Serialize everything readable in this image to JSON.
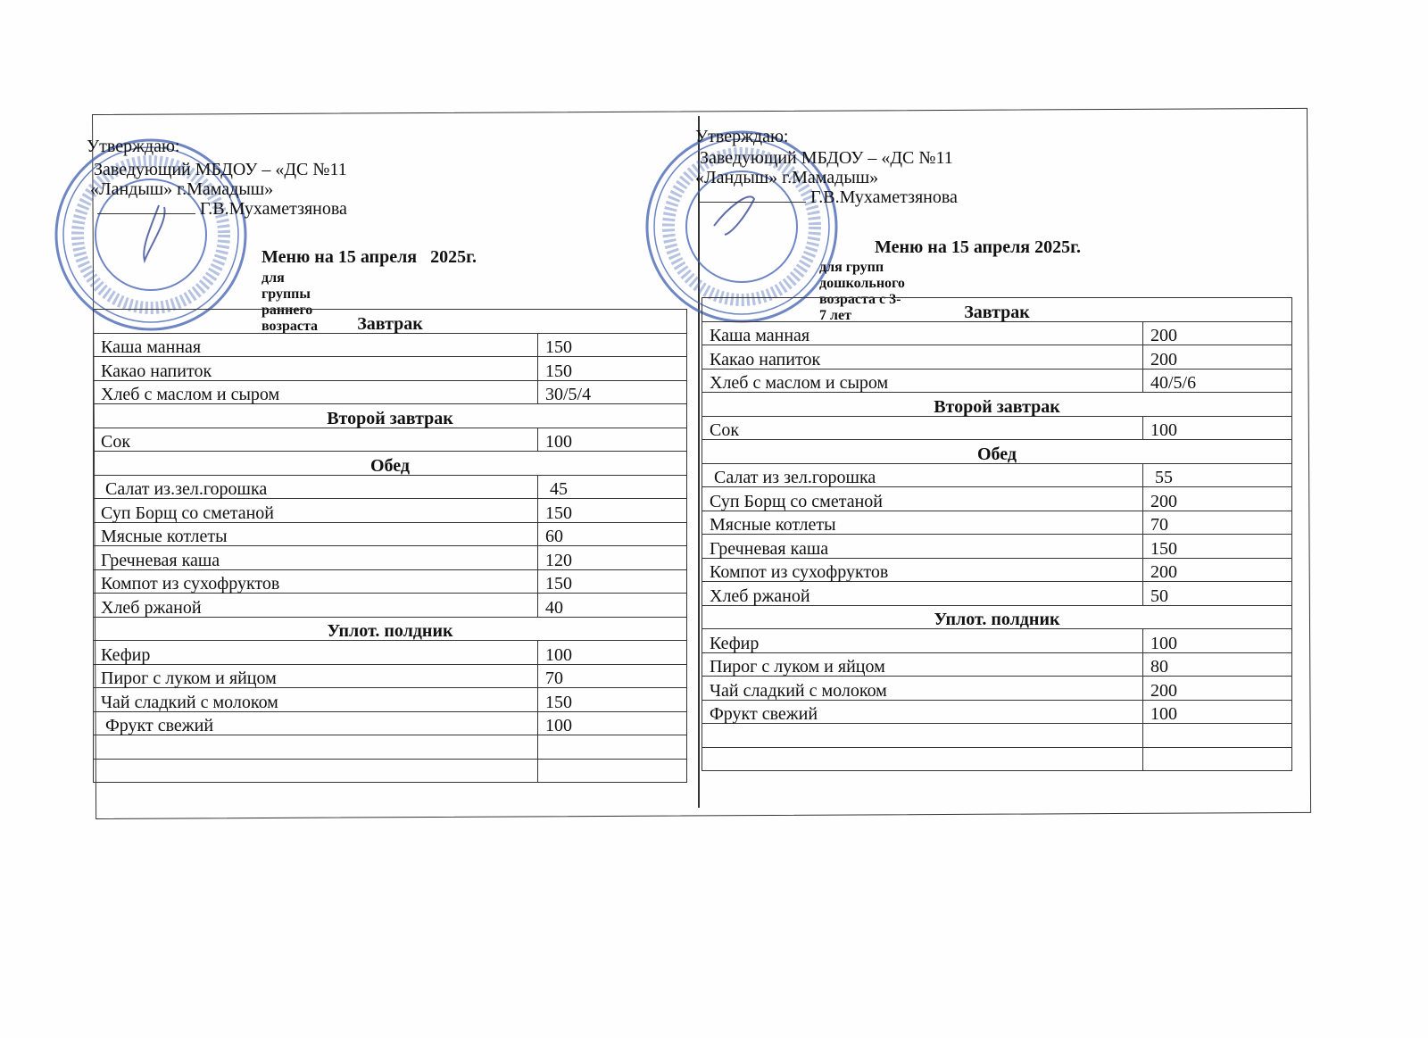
{
  "stamp_text": {
    "center_line1": "МБДОУ ДС №11",
    "center_line2": "\"Ландыш\" г.Мамадыш",
    "center_line3": "МБМБУ \"Мамадыш шәһәре",
    "center_line4": "11 нче \"Ландыш\" ББ\""
  },
  "colors": {
    "stamp": "#3f5fb0",
    "ink": "#111111"
  },
  "menus": [
    {
      "approve": "Утверждаю:",
      "position": "Заведующий МБДОУ – «ДС №11",
      "org": "«Ландыш» г.Мамадыш»",
      "signer": "Г.В.Мухаметзянова",
      "title": "Меню на 15 апреля   2025г.",
      "subtitle": "для группы раннего возраста",
      "sections": [
        {
          "name": "Завтрак",
          "items": [
            [
              "Каша манная",
              "150"
            ],
            [
              "Какао напиток",
              "150"
            ],
            [
              "Хлеб с маслом и сыром",
              "30/5/4"
            ]
          ]
        },
        {
          "name": "Второй завтрак",
          "items": [
            [
              "Сок",
              "100"
            ]
          ]
        },
        {
          "name": "Обед",
          "items": [
            [
              " Салат из.зел.горошка",
              " 45"
            ],
            [
              "Суп Борщ со сметаной",
              "150"
            ],
            [
              "Мясные котлеты",
              "60"
            ],
            [
              "Гречневая каша",
              "120"
            ],
            [
              "Компот из сухофруктов",
              "150"
            ],
            [
              "Хлеб ржаной",
              "40"
            ]
          ]
        },
        {
          "name": "Уплот. полдник",
          "items": [
            [
              "Кефир",
              "100"
            ],
            [
              "Пирог с луком и яйцом",
              "70"
            ],
            [
              "Чай сладкий с молоком",
              "150"
            ],
            [
              " Фрукт свежий",
              "100"
            ],
            [
              "",
              ""
            ],
            [
              "",
              ""
            ]
          ]
        }
      ]
    },
    {
      "approve": "Утверждаю:",
      "position": "Заведующий МБДОУ – «ДС №11",
      "org": "«Ландыш» г.Мамадыш»",
      "signer": "Г.В.Мухаметзянова",
      "title": "Меню на 15 апреля 2025г.",
      "subtitle": "для групп дошкольного возраста с 3-7 лет",
      "sections": [
        {
          "name": "Завтрак",
          "items": [
            [
              "Каша манная",
              "200"
            ],
            [
              "Какао напиток",
              "200"
            ],
            [
              "Хлеб с маслом и сыром",
              "40/5/6"
            ]
          ]
        },
        {
          "name": "Второй завтрак",
          "items": [
            [
              "Сок",
              "100"
            ]
          ]
        },
        {
          "name": "Обед",
          "items": [
            [
              " Салат из зел.горошка",
              " 55"
            ],
            [
              "Суп Борщ со сметаной",
              "200"
            ],
            [
              "Мясные котлеты",
              "70"
            ],
            [
              "Гречневая каша",
              "150"
            ],
            [
              "Компот из сухофруктов",
              "200"
            ],
            [
              "Хлеб ржаной",
              "50"
            ]
          ]
        },
        {
          "name": "Уплот. полдник",
          "items": [
            [
              "Кефир",
              "100"
            ],
            [
              "Пирог с луком и яйцом",
              "80"
            ],
            [
              "Чай сладкий с молоком",
              "200"
            ],
            [
              "Фрукт свежий",
              "100"
            ],
            [
              "",
              ""
            ],
            [
              "",
              ""
            ]
          ]
        }
      ]
    }
  ]
}
